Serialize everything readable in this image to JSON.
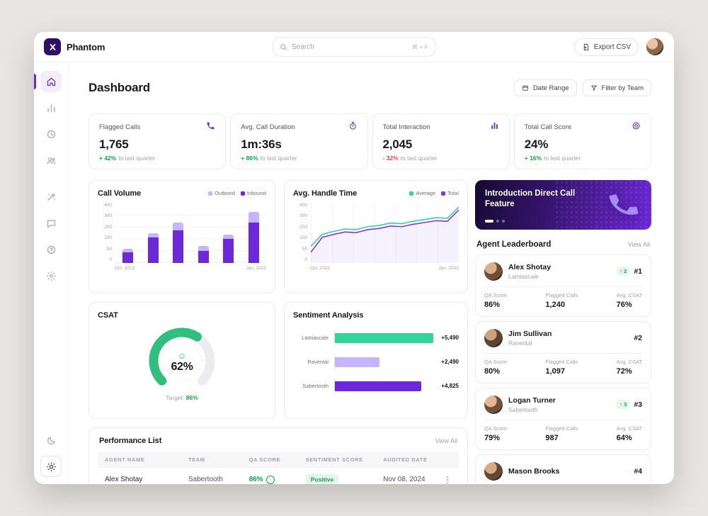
{
  "app": {
    "brand": "Phantom",
    "search": {
      "placeholder": "Search",
      "shortcut": "⌘ + F"
    },
    "export_label": "Export CSV"
  },
  "sidebar": {
    "icons": [
      "home",
      "analytics",
      "history",
      "agents",
      "automation",
      "messages",
      "support",
      "settings"
    ],
    "theme_icons": [
      "moon",
      "sun"
    ],
    "accent": "#6d28d9"
  },
  "page": {
    "title": "Dashboard",
    "date_range_label": "Date Range",
    "filter_label": "Filter by Team"
  },
  "stats": [
    {
      "label": "Flagged Calls",
      "value": "1,765",
      "delta": "+ 42%",
      "direction": "up",
      "suffix": "to last quarter",
      "icon": "phone"
    },
    {
      "label": "Avg. Call Duration",
      "value": "1m:36s",
      "delta": "+ 86%",
      "direction": "up",
      "suffix": "to last quarter",
      "icon": "stopwatch"
    },
    {
      "label": "Total Interaction",
      "value": "2,045",
      "delta": "- 32%",
      "direction": "down",
      "suffix": "to last quarter",
      "icon": "bar-chart"
    },
    {
      "label": "Total Call Score",
      "value": "24%",
      "delta": "+ 16%",
      "direction": "up",
      "suffix": "to last quarter",
      "icon": "score"
    }
  ],
  "banner": {
    "title": "Introduction Direct Call Feature"
  },
  "leaderboard": {
    "title": "Agent Leaderboard",
    "view_all": "View All",
    "stat_labels": {
      "qa": "QA Score",
      "flagged": "Flagged Calls",
      "csat": "Avg. CSAT"
    },
    "agents": [
      {
        "name": "Alex Shotay",
        "team": "Lamiascale",
        "rank": "#1",
        "change": "↑ 2",
        "qa": "86%",
        "flagged": "1,240",
        "csat": "76%"
      },
      {
        "name": "Jim Sullivan",
        "team": "Ravental",
        "rank": "#2",
        "change": "",
        "qa": "80%",
        "flagged": "1,097",
        "csat": "72%"
      },
      {
        "name": "Logan Turner",
        "team": "Sabertooth",
        "rank": "#3",
        "change": "↑ 3",
        "qa": "79%",
        "flagged": "987",
        "csat": "64%"
      },
      {
        "name": "Mason Brooks",
        "team": "",
        "rank": "#4",
        "change": "",
        "qa": "",
        "flagged": "",
        "csat": ""
      }
    ]
  },
  "performance": {
    "title": "Performance List",
    "view_all": "View All",
    "columns": [
      "Agent Name",
      "Team",
      "QA Score",
      "Sentiment Score",
      "Audited Date"
    ],
    "rows": [
      {
        "agent": "Alex Shotay",
        "team": "Sabertooth",
        "qa": "86%",
        "sentiment": "Positive",
        "date": "Nov 08, 2024"
      }
    ]
  },
  "chart_data": [
    {
      "id": "call_volume",
      "type": "bar",
      "title": "Call Volume",
      "legend": [
        "Outbond",
        "Inbound"
      ],
      "y_ticks": [
        0,
        50,
        100,
        200,
        300,
        400
      ],
      "x_labels": [
        "Oct, 2022",
        "Jan, 2023"
      ],
      "series": [
        {
          "name": "Inbound",
          "color": "#6d28d9",
          "values": [
            45,
            110,
            170,
            50,
            100,
            240
          ]
        },
        {
          "name": "Outbond",
          "color": "#c4b5fd",
          "values": [
            15,
            40,
            65,
            20,
            35,
            90
          ]
        }
      ]
    },
    {
      "id": "handle_time",
      "type": "line",
      "title": "Avg. Handle Time",
      "legend": [
        "Average",
        "Total"
      ],
      "y_ticks": [
        0,
        50,
        100,
        200,
        300,
        400
      ],
      "x_labels": [
        "Oct, 2022",
        "Jan, 2023"
      ],
      "series": [
        {
          "name": "Average",
          "color": "#34d399",
          "values": [
            70,
            140,
            165,
            185,
            180,
            205,
            215,
            235,
            230,
            250,
            265,
            280,
            275,
            370
          ]
        },
        {
          "name": "Total",
          "color": "#7c3aed",
          "values": [
            45,
            115,
            140,
            160,
            155,
            180,
            190,
            210,
            205,
            225,
            240,
            255,
            250,
            345
          ]
        }
      ]
    },
    {
      "id": "csat",
      "type": "gauge",
      "title": "CSAT",
      "value": 62,
      "value_label": "62%",
      "target_label": "Target:",
      "target_value": "86%",
      "color": "#2fbf7f",
      "track_color": "#ececf0"
    },
    {
      "id": "sentiment",
      "type": "bar-horizontal",
      "title": "Sentiment Analysis",
      "categories": [
        "Lamiascale",
        "Ravental",
        "Sabertooth"
      ],
      "values": [
        5490,
        2490,
        4825
      ],
      "value_labels": [
        "+5,490",
        "+2,490",
        "+4,825"
      ],
      "colors": [
        "#34d399",
        "#c4b5fd",
        "#6d28d9"
      ]
    }
  ]
}
